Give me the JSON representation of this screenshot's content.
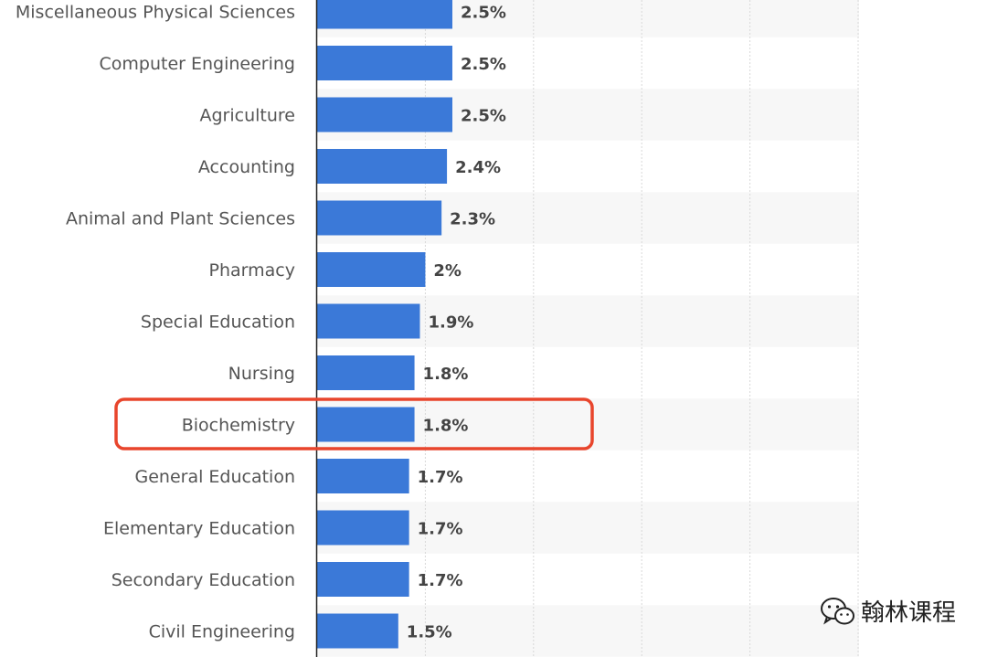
{
  "chart_data": {
    "type": "bar",
    "orientation": "horizontal",
    "categories": [
      "Miscellaneous Physical Sciences",
      "Computer Engineering",
      "Agriculture",
      "Accounting",
      "Animal and Plant Sciences",
      "Pharmacy",
      "Special Education",
      "Nursing",
      "Biochemistry",
      "General Education",
      "Elementary Education",
      "Secondary Education",
      "Civil Engineering"
    ],
    "values": [
      2.5,
      2.5,
      2.5,
      2.4,
      2.3,
      2.0,
      1.9,
      1.8,
      1.8,
      1.7,
      1.7,
      1.7,
      1.5
    ],
    "value_labels": [
      "2.5%",
      "2.5%",
      "2.5%",
      "2.4%",
      "2.3%",
      "2%",
      "1.9%",
      "1.8%",
      "1.8%",
      "1.7%",
      "1.7%",
      "1.7%",
      "1.5%"
    ],
    "highlighted_category": "Biochemistry",
    "xlim": [
      0,
      12.5
    ],
    "grid": true,
    "colors": {
      "bar": "#3b79d8",
      "highlight": "#e8452c",
      "band": "#f7f7f7",
      "grid": "#d8d8d8"
    }
  },
  "watermark": {
    "text": "翰林课程",
    "icon": "wechat-icon"
  }
}
